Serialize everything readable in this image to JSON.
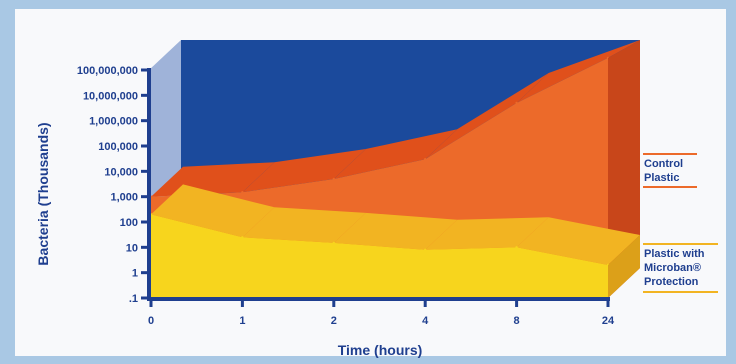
{
  "chart_data": {
    "type": "area",
    "title": "",
    "xlabel": "Time (hours)",
    "ylabel": "Bacteria (Thousands)",
    "y_scale": "log",
    "ylim": [
      0.1,
      100000000
    ],
    "yticks": [
      ".1",
      "1",
      "10",
      "100",
      "1,000",
      "10,000",
      "100,000",
      "1,000,000",
      "10,000,000",
      "100,000,000"
    ],
    "categories": [
      "0",
      "1",
      "2",
      "4",
      "8",
      "24"
    ],
    "series": [
      {
        "name": "Control Plastic",
        "color": "#ec6a2a",
        "values": [
          1000,
          1500,
          5000,
          30000,
          5000000,
          300000000
        ]
      },
      {
        "name": "Plastic with Microban® Protection",
        "color": "#f7d51d",
        "values": [
          200,
          25,
          15,
          8,
          10,
          2
        ]
      }
    ],
    "legend": [
      {
        "lines": [
          "Control",
          "Plastic"
        ],
        "color": "#ec6a2a"
      },
      {
        "lines": [
          "Plastic with",
          "Microban®",
          "Protection"
        ],
        "color": "#f2b422"
      }
    ],
    "colors": {
      "backdrop": "#1b4a9c",
      "axis": "#1f3f8f",
      "side_wall": "#9fb3d9"
    }
  }
}
